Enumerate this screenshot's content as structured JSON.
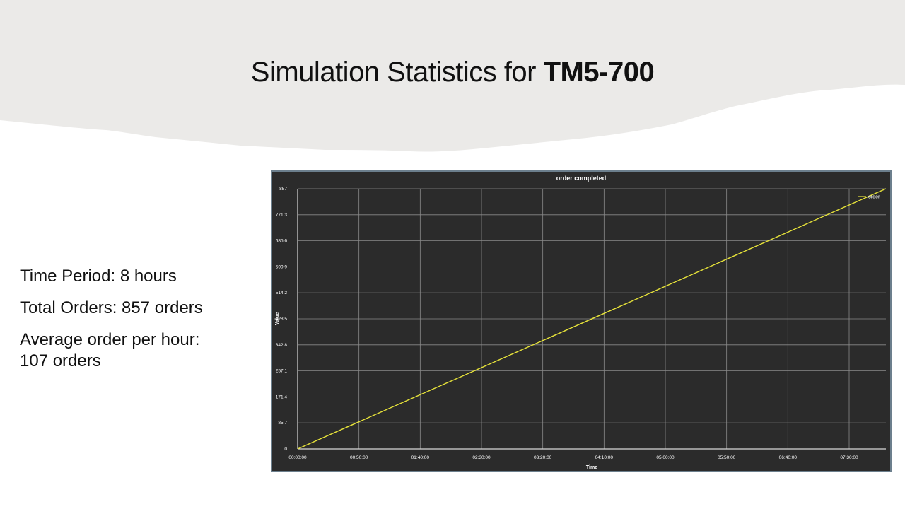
{
  "slide": {
    "title_prefix": "Simulation Statistics for ",
    "title_bold": "TM5-700",
    "stats": {
      "time_period": "Time Period: 8 hours",
      "total_orders": "Total Orders: 857 orders",
      "average_line1": "Average order per hour:",
      "average_line2": "107 orders"
    }
  },
  "chart_data": {
    "type": "line",
    "title": "order completed",
    "xlabel": "Time",
    "ylabel": "Value",
    "x_ticks": [
      "00:00:00",
      "00:50:00",
      "01:40:00",
      "02:30:00",
      "03:20:00",
      "04:10:00",
      "05:00:00",
      "05:50:00",
      "06:40:00",
      "07:30:00"
    ],
    "y_ticks": [
      "0",
      "85.7",
      "171.4",
      "257.1",
      "342.8",
      "428.5",
      "514.2",
      "599.9",
      "685.6",
      "771.3",
      "857"
    ],
    "xlim_minutes": [
      0,
      480
    ],
    "ylim": [
      0,
      857
    ],
    "grid": true,
    "legend_position": "top-right",
    "series": [
      {
        "name": "order",
        "color": "#e6e23a",
        "x_minutes": [
          0,
          480
        ],
        "values": [
          0,
          857
        ]
      }
    ],
    "colors": {
      "background": "#2b2b2b",
      "grid": "#8a8a8a",
      "axis": "#d8d8d8",
      "text": "#ffffff"
    }
  }
}
